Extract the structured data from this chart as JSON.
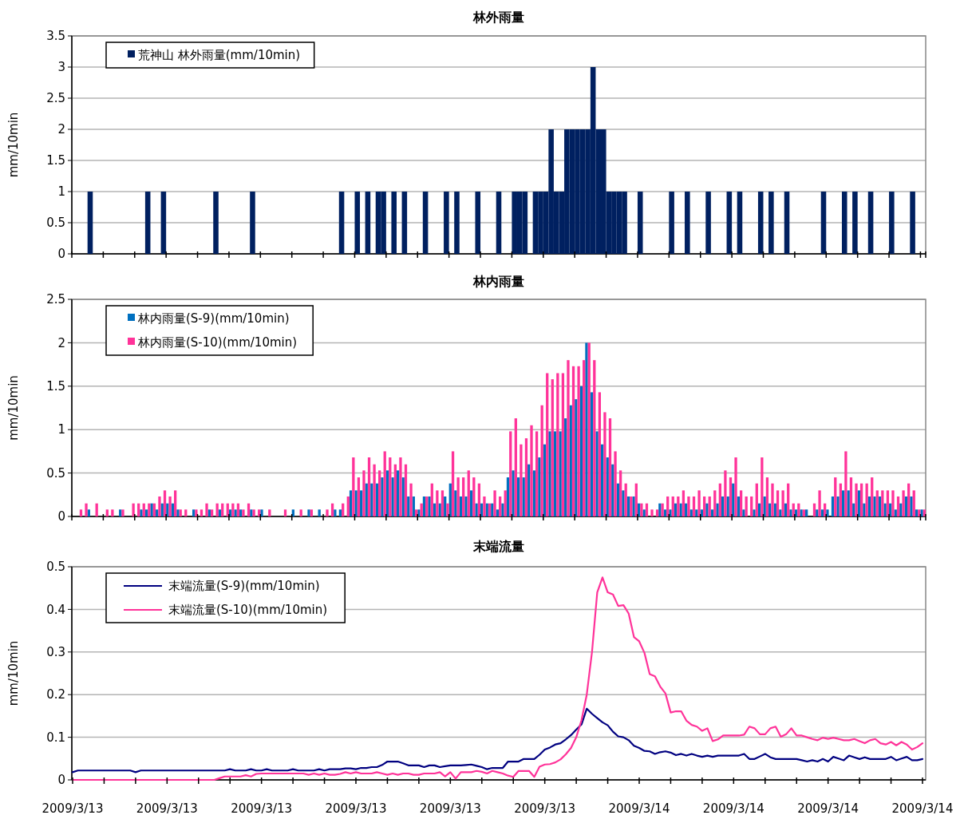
{
  "chart_data": [
    {
      "type": "bar",
      "title": "林外雨量",
      "ylabel": "mm/10min",
      "ylim": [
        0,
        3.5
      ],
      "yticks": [
        0,
        0.5,
        1,
        1.5,
        2,
        2.5,
        3,
        3.5
      ],
      "grid": "y",
      "legend": "top left",
      "tick_labels": "y",
      "categories": [
        null,
        null,
        null,
        null,
        null,
        null,
        null,
        null,
        null,
        null,
        null,
        null,
        null,
        null,
        null,
        null,
        null,
        null,
        null,
        null,
        null,
        null,
        null,
        null,
        null,
        null,
        null,
        null,
        null,
        null,
        null,
        null,
        null,
        null,
        null,
        null,
        null,
        null,
        null,
        null,
        null,
        null,
        null,
        null,
        null,
        null,
        null,
        null,
        null,
        null,
        null,
        null,
        null,
        null,
        null,
        null,
        null,
        null,
        null,
        null,
        null,
        null,
        null,
        null,
        null,
        null,
        null,
        null,
        null,
        null,
        null,
        null,
        null,
        null,
        null,
        null,
        null,
        null,
        null,
        null,
        null,
        null,
        null,
        null,
        null,
        null,
        null,
        null,
        null,
        null,
        null,
        null,
        null,
        null,
        null,
        null,
        null,
        null,
        null,
        null,
        null,
        null,
        null,
        null,
        null,
        null,
        null,
        null,
        null,
        null,
        null,
        null,
        null,
        null,
        null,
        null,
        null,
        null,
        null,
        null,
        null,
        null,
        null,
        null,
        null,
        null,
        null,
        null,
        null,
        null,
        null,
        null,
        null,
        null,
        null,
        null,
        null,
        null,
        null,
        null,
        null,
        null,
        null,
        null,
        null,
        null,
        null,
        null,
        null,
        null,
        null,
        null,
        null,
        null,
        null,
        null,
        null,
        null,
        null,
        null,
        null,
        null,
        null
      ],
      "series": [
        {
          "name": "荒神山 林外雨量(mm/10min)",
          "color": "#002060",
          "values": [
            0,
            0,
            0,
            1,
            0,
            0,
            0,
            0,
            0,
            0,
            0,
            0,
            0,
            0,
            1,
            0,
            0,
            1,
            0,
            0,
            0,
            0,
            0,
            0,
            0,
            0,
            0,
            1,
            0,
            0,
            0,
            0,
            0,
            0,
            1,
            0,
            0,
            0,
            0,
            0,
            0,
            0,
            0,
            0,
            0,
            0,
            0,
            0,
            0,
            0,
            0,
            1,
            0,
            0,
            1,
            0,
            1,
            0,
            1,
            1,
            0,
            1,
            0,
            1,
            0,
            0,
            0,
            1,
            0,
            0,
            0,
            1,
            0,
            1,
            0,
            0,
            0,
            1,
            0,
            0,
            0,
            1,
            0,
            0,
            1,
            1,
            1,
            0,
            1,
            1,
            1,
            2,
            1,
            1,
            2,
            2,
            2,
            2,
            2,
            3,
            2,
            2,
            1,
            1,
            1,
            1,
            0,
            0,
            1,
            0,
            0,
            0,
            0,
            0,
            1,
            0,
            0,
            1,
            0,
            0,
            0,
            1,
            0,
            0,
            0,
            1,
            0,
            1,
            0,
            0,
            0,
            1,
            0,
            1,
            0,
            0,
            1,
            0,
            0,
            0,
            0,
            0,
            0,
            1,
            0,
            0,
            0,
            1,
            0,
            1,
            0,
            0,
            1,
            0,
            0,
            0,
            1,
            0,
            0,
            0,
            1,
            0,
            0
          ]
        }
      ]
    },
    {
      "type": "bar",
      "title": "林内雨量",
      "ylabel": "mm/10min",
      "ylim": [
        0,
        2.5
      ],
      "yticks": [
        0,
        0.5,
        1,
        1.5,
        2,
        2.5
      ],
      "grid": "y",
      "legend": "top left",
      "tick_labels": "y",
      "categories": [
        null,
        null,
        null,
        null,
        null,
        null,
        null,
        null,
        null,
        null,
        null,
        null,
        null,
        null,
        null,
        null,
        null,
        null,
        null,
        null,
        null,
        null,
        null,
        null,
        null,
        null,
        null,
        null,
        null,
        null,
        null,
        null,
        null,
        null,
        null,
        null,
        null,
        null,
        null,
        null,
        null,
        null,
        null,
        null,
        null,
        null,
        null,
        null,
        null,
        null,
        null,
        null,
        null,
        null,
        null,
        null,
        null,
        null,
        null,
        null,
        null,
        null,
        null,
        null,
        null,
        null,
        null,
        null,
        null,
        null,
        null,
        null,
        null,
        null,
        null,
        null,
        null,
        null,
        null,
        null,
        null,
        null,
        null,
        null,
        null,
        null,
        null,
        null,
        null,
        null,
        null,
        null,
        null,
        null,
        null,
        null,
        null,
        null,
        null,
        null,
        null,
        null,
        null,
        null,
        null,
        null,
        null,
        null,
        null,
        null,
        null,
        null,
        null,
        null,
        null,
        null,
        null,
        null,
        null,
        null,
        null,
        null,
        null,
        null,
        null,
        null,
        null,
        null,
        null,
        null,
        null,
        null,
        null,
        null,
        null,
        null,
        null,
        null,
        null,
        null,
        null,
        null,
        null,
        null,
        null,
        null,
        null,
        null,
        null,
        null,
        null,
        null,
        null,
        null,
        null,
        null,
        null,
        null,
        null,
        null,
        null,
        null,
        null
      ],
      "series": [
        {
          "name": "林内雨量(S-9)(mm/10min)",
          "color": "#0070c0",
          "values": [
            0,
            0,
            0,
            0.08,
            0,
            0,
            0,
            0,
            0,
            0.08,
            0,
            0,
            0,
            0.08,
            0.08,
            0.15,
            0.08,
            0.15,
            0.15,
            0.15,
            0.08,
            0,
            0,
            0.08,
            0,
            0,
            0.08,
            0,
            0.08,
            0,
            0.08,
            0.08,
            0.08,
            0,
            0.08,
            0,
            0.08,
            0,
            0,
            0,
            0,
            0,
            0.08,
            0,
            0,
            0.08,
            0,
            0.08,
            0,
            0,
            0.08,
            0.08,
            0,
            0.3,
            0.3,
            0.3,
            0.38,
            0.38,
            0.38,
            0.45,
            0.53,
            0.45,
            0.53,
            0.45,
            0.23,
            0.23,
            0.08,
            0.23,
            0.23,
            0.15,
            0.15,
            0.23,
            0.38,
            0.3,
            0.23,
            0.23,
            0.3,
            0.15,
            0.15,
            0.15,
            0.15,
            0.08,
            0.15,
            0.45,
            0.53,
            0.45,
            0.45,
            0.6,
            0.53,
            0.68,
            0.83,
            0.98,
            0.98,
            0.98,
            1.13,
            1.28,
            1.35,
            1.5,
            2,
            1.43,
            0.98,
            0.83,
            0.68,
            0.6,
            0.38,
            0.3,
            0.23,
            0.23,
            0.15,
            0.08,
            0,
            0,
            0.15,
            0.08,
            0.08,
            0.15,
            0.15,
            0.15,
            0.08,
            0.08,
            0.08,
            0.15,
            0.08,
            0.15,
            0.23,
            0.23,
            0.38,
            0.23,
            0.08,
            0,
            0.08,
            0.15,
            0.23,
            0.15,
            0.15,
            0.08,
            0.15,
            0.08,
            0.08,
            0.08,
            0.08,
            0,
            0.08,
            0.08,
            0.08,
            0.23,
            0.23,
            0.3,
            0.3,
            0.15,
            0.3,
            0.15,
            0.23,
            0.23,
            0.23,
            0.15,
            0.15,
            0.08,
            0.15,
            0.23,
            0.23,
            0.08,
            0.08
          ]
        },
        {
          "name": "林内雨量(S-10)(mm/10min)",
          "color": "#ff3399",
          "values": [
            0,
            0.08,
            0.15,
            0,
            0.15,
            0,
            0.08,
            0.08,
            0,
            0.08,
            0,
            0.15,
            0.15,
            0.15,
            0.15,
            0.15,
            0.23,
            0.3,
            0.23,
            0.3,
            0.08,
            0.08,
            0,
            0.08,
            0.08,
            0.15,
            0.08,
            0.15,
            0.15,
            0.15,
            0.15,
            0.15,
            0.08,
            0.15,
            0.08,
            0.08,
            0,
            0.08,
            0,
            0,
            0.08,
            0,
            0,
            0.08,
            0,
            0.08,
            0,
            0,
            0.08,
            0.15,
            0,
            0.15,
            0.23,
            0.68,
            0.45,
            0.53,
            0.68,
            0.6,
            0.53,
            0.75,
            0.68,
            0.6,
            0.68,
            0.6,
            0.38,
            0.08,
            0.15,
            0.23,
            0.38,
            0.3,
            0.3,
            0.15,
            0.75,
            0.45,
            0.45,
            0.53,
            0.45,
            0.38,
            0.23,
            0.15,
            0.3,
            0.23,
            0.3,
            0.98,
            1.13,
            0.83,
            0.9,
            1.05,
            0.98,
            1.28,
            1.65,
            1.58,
            1.65,
            1.65,
            1.8,
            1.73,
            1.73,
            1.8,
            2,
            1.8,
            1.43,
            1.2,
            1.13,
            0.75,
            0.53,
            0.38,
            0.23,
            0.38,
            0.15,
            0.15,
            0.08,
            0.08,
            0.15,
            0.23,
            0.23,
            0.23,
            0.3,
            0.23,
            0.23,
            0.3,
            0.23,
            0.23,
            0.3,
            0.38,
            0.53,
            0.45,
            0.68,
            0.3,
            0.23,
            0.23,
            0.38,
            0.68,
            0.45,
            0.38,
            0.3,
            0.3,
            0.38,
            0.15,
            0.15,
            0.08,
            0,
            0.15,
            0.3,
            0.15,
            0,
            0.45,
            0.38,
            0.75,
            0.45,
            0.38,
            0.38,
            0.38,
            0.45,
            0.3,
            0.3,
            0.3,
            0.3,
            0.23,
            0.3,
            0.38,
            0.3,
            0.08,
            0.08
          ]
        }
      ]
    },
    {
      "type": "line",
      "title": "末端流量",
      "ylabel": "mm/10min",
      "ylim": [
        0,
        0.5
      ],
      "yticks": [
        0,
        0.1,
        0.2,
        0.3,
        0.4,
        0.5
      ],
      "grid": "y",
      "legend": "top left",
      "categories": [
        "2009/3/13",
        null,
        null,
        null,
        null,
        null,
        null,
        null,
        null,
        null,
        null,
        null,
        null,
        null,
        null,
        null,
        null,
        null,
        "2009/3/13",
        null,
        null,
        null,
        null,
        null,
        null,
        null,
        null,
        null,
        null,
        null,
        null,
        null,
        null,
        null,
        null,
        null,
        "2009/3/13",
        null,
        null,
        null,
        null,
        null,
        null,
        null,
        null,
        null,
        null,
        null,
        null,
        null,
        null,
        null,
        null,
        null,
        "2009/3/13",
        null,
        null,
        null,
        null,
        null,
        null,
        null,
        null,
        null,
        null,
        null,
        null,
        null,
        null,
        null,
        null,
        null,
        "2009/3/13",
        null,
        null,
        null,
        null,
        null,
        null,
        null,
        null,
        null,
        null,
        null,
        null,
        null,
        null,
        null,
        null,
        null,
        "2009/3/13",
        null,
        null,
        null,
        null,
        null,
        null,
        null,
        null,
        null,
        null,
        null,
        null,
        null,
        null,
        null,
        null,
        null,
        "2009/3/14",
        null,
        null,
        null,
        null,
        null,
        null,
        null,
        null,
        null,
        null,
        null,
        null,
        null,
        null,
        null,
        null,
        null,
        "2009/3/14",
        null,
        null,
        null,
        null,
        null,
        null,
        null,
        null,
        null,
        null,
        null,
        null,
        null,
        null,
        null,
        null,
        null,
        "2009/3/14",
        null,
        null,
        null,
        null,
        null,
        null,
        null,
        null,
        null,
        null,
        null,
        null,
        null,
        null,
        null,
        null,
        null,
        "2009/3/14"
      ],
      "series": [
        {
          "name": "末端流量(S-9)(mm/10min)",
          "color": "#000080",
          "values": [
            0.018,
            0.022,
            0.022,
            0.022,
            0.022,
            0.022,
            0.022,
            0.022,
            0.022,
            0.022,
            0.022,
            0.022,
            0.018,
            0.022,
            0.022,
            0.022,
            0.022,
            0.022,
            0.022,
            0.022,
            0.022,
            0.022,
            0.022,
            0.022,
            0.022,
            0.022,
            0.022,
            0.022,
            0.022,
            0.022,
            0.025,
            0.022,
            0.022,
            0.022,
            0.025,
            0.022,
            0.022,
            0.025,
            0.022,
            0.022,
            0.022,
            0.022,
            0.025,
            0.022,
            0.022,
            0.022,
            0.022,
            0.025,
            0.022,
            0.025,
            0.025,
            0.025,
            0.027,
            0.027,
            0.025,
            0.028,
            0.028,
            0.03,
            0.03,
            0.035,
            0.043,
            0.043,
            0.043,
            0.039,
            0.034,
            0.034,
            0.034,
            0.03,
            0.034,
            0.034,
            0.03,
            0.032,
            0.034,
            0.034,
            0.034,
            0.035,
            0.036,
            0.033,
            0.03,
            0.025,
            0.028,
            0.028,
            0.028,
            0.043,
            0.043,
            0.043,
            0.049,
            0.049,
            0.049,
            0.059,
            0.071,
            0.076,
            0.083,
            0.086,
            0.095,
            0.105,
            0.118,
            0.13,
            0.167,
            0.155,
            0.145,
            0.135,
            0.128,
            0.113,
            0.102,
            0.1,
            0.093,
            0.08,
            0.075,
            0.068,
            0.067,
            0.061,
            0.065,
            0.067,
            0.064,
            0.058,
            0.061,
            0.057,
            0.061,
            0.057,
            0.054,
            0.057,
            0.054,
            0.057,
            0.057,
            0.057,
            0.057,
            0.057,
            0.061,
            0.049,
            0.049,
            0.055,
            0.061,
            0.053,
            0.049,
            0.049,
            0.049,
            0.049,
            0.049,
            0.046,
            0.043,
            0.046,
            0.043,
            0.049,
            0.043,
            0.054,
            0.05,
            0.046,
            0.057,
            0.053,
            0.049,
            0.053,
            0.049,
            0.049,
            0.049,
            0.049,
            0.054,
            0.046,
            0.05,
            0.054,
            0.046,
            0.046,
            0.049
          ]
        },
        {
          "name": "末端流量(S-10)(mm/10min)",
          "color": "#ff3399",
          "values": [
            0,
            0,
            0,
            0,
            0,
            0,
            0,
            0,
            0,
            0,
            0,
            0,
            0,
            0,
            0,
            0,
            0,
            0,
            0,
            0,
            0,
            0,
            0,
            0,
            0,
            0,
            0,
            0,
            0.004,
            0.008,
            0.008,
            0.008,
            0.008,
            0.011,
            0.008,
            0.014,
            0.015,
            0.015,
            0.015,
            0.015,
            0.015,
            0.015,
            0.015,
            0.015,
            0.015,
            0.012,
            0.015,
            0.012,
            0.015,
            0.012,
            0.012,
            0.014,
            0.018,
            0.015,
            0.018,
            0.015,
            0.015,
            0.015,
            0.018,
            0.015,
            0.012,
            0.015,
            0.012,
            0.015,
            0.015,
            0.012,
            0.012,
            0.015,
            0.015,
            0.015,
            0.018,
            0.008,
            0.018,
            0.003,
            0.018,
            0.018,
            0.018,
            0.021,
            0.019,
            0.015,
            0.021,
            0.018,
            0.015,
            0.01,
            0.007,
            0.021,
            0.021,
            0.021,
            0.007,
            0.031,
            0.036,
            0.037,
            0.041,
            0.048,
            0.06,
            0.075,
            0.1,
            0.14,
            0.2,
            0.3,
            0.44,
            0.475,
            0.44,
            0.435,
            0.408,
            0.41,
            0.39,
            0.335,
            0.325,
            0.298,
            0.248,
            0.243,
            0.219,
            0.203,
            0.158,
            0.161,
            0.161,
            0.139,
            0.129,
            0.125,
            0.115,
            0.121,
            0.091,
            0.095,
            0.104,
            0.104,
            0.104,
            0.104,
            0.106,
            0.125,
            0.121,
            0.107,
            0.107,
            0.121,
            0.125,
            0.101,
            0.107,
            0.121,
            0.104,
            0.104,
            0.1,
            0.096,
            0.093,
            0.099,
            0.096,
            0.099,
            0.096,
            0.093,
            0.093,
            0.096,
            0.091,
            0.086,
            0.093,
            0.096,
            0.086,
            0.083,
            0.089,
            0.081,
            0.089,
            0.083,
            0.071,
            0.077,
            0.086
          ]
        }
      ]
    }
  ]
}
